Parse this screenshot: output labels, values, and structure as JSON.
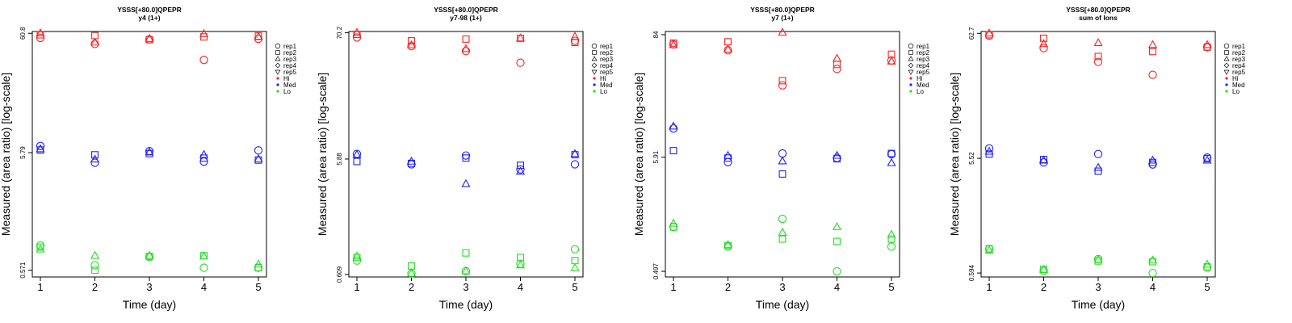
{
  "colors": {
    "Hi": "#ff2020",
    "Med": "#2020ff",
    "Lo": "#20e020",
    "axis": "#000000"
  },
  "legend": {
    "shapes": [
      {
        "label": "rep1",
        "marker": "circle"
      },
      {
        "label": "rep2",
        "marker": "square"
      },
      {
        "label": "rep3",
        "marker": "triangle-up"
      },
      {
        "label": "rep4",
        "marker": "diamond"
      },
      {
        "label": "rep5",
        "marker": "triangle-down"
      }
    ],
    "groups": [
      {
        "label": "Hi",
        "color_key": "Hi"
      },
      {
        "label": "Med",
        "color_key": "Med"
      },
      {
        "label": "Lo",
        "color_key": "Lo"
      }
    ]
  },
  "chart_data": [
    {
      "type": "scatter",
      "title": "YSSS[+80.0]QPEPR",
      "subtitle": "y4 (1+)",
      "xlabel": "Time (day)",
      "ylabel": "Measured (area ratio) [log-scale]",
      "yscale": "log",
      "x_ticks": [
        "1",
        "2",
        "3",
        "4",
        "5"
      ],
      "y_ticks": [
        {
          "value": 0.571,
          "label": "0.571"
        },
        {
          "value": 5.79,
          "label": "5.79"
        },
        {
          "value": 60.8,
          "label": "60.8"
        }
      ],
      "ylim": [
        0.5,
        63
      ],
      "legend_position": "right",
      "series": [
        {
          "group": "Hi",
          "rep": "rep1",
          "x": [
            1,
            2,
            3,
            4,
            5
          ],
          "y": [
            55.5,
            49.3,
            53.9,
            36.0,
            54.5
          ]
        },
        {
          "group": "Hi",
          "rep": "rep2",
          "x": [
            1,
            2,
            3,
            4,
            5
          ],
          "y": [
            59.0,
            58.1,
            53.6,
            56.6,
            57.6
          ]
        },
        {
          "group": "Hi",
          "rep": "rep3",
          "x": [
            1,
            2,
            3,
            4,
            5
          ],
          "y": [
            60.8,
            50.8,
            54.5,
            60.0,
            56.6
          ]
        },
        {
          "group": "Med",
          "rep": "rep1",
          "x": [
            1,
            2,
            3,
            4,
            5
          ],
          "y": [
            6.6,
            4.75,
            5.97,
            4.85,
            6.05
          ]
        },
        {
          "group": "Med",
          "rep": "rep2",
          "x": [
            1,
            2,
            3,
            4,
            5
          ],
          "y": [
            6.1,
            5.55,
            5.68,
            5.2,
            5.0
          ]
        },
        {
          "group": "Med",
          "rep": "rep3",
          "x": [
            1,
            2,
            3,
            4,
            5
          ],
          "y": [
            6.2,
            5.07,
            5.83,
            5.55,
            5.1
          ]
        },
        {
          "group": "Lo",
          "rep": "rep1",
          "x": [
            1,
            2,
            3,
            4,
            5
          ],
          "y": [
            0.93,
            0.63,
            0.74,
            0.6,
            0.6
          ]
        },
        {
          "group": "Lo",
          "rep": "rep2",
          "x": [
            1,
            2,
            3,
            4,
            5
          ],
          "y": [
            0.9,
            0.571,
            0.75,
            0.76,
            0.6
          ]
        },
        {
          "group": "Lo",
          "rep": "rep3",
          "x": [
            1,
            2,
            3,
            4,
            5
          ],
          "y": [
            0.86,
            0.76,
            0.76,
            0.75,
            0.64
          ]
        }
      ]
    },
    {
      "type": "scatter",
      "title": "YSSS[+80.0]QPEPR",
      "subtitle": "y7-98 (1+)",
      "xlabel": "Time (day)",
      "ylabel": "Measured (area ratio) [log-scale]",
      "yscale": "log",
      "x_ticks": [
        "1",
        "2",
        "3",
        "4",
        "5"
      ],
      "y_ticks": [
        {
          "value": 0.609,
          "label": "0.609"
        },
        {
          "value": 5.88,
          "label": "5.88"
        },
        {
          "value": 70.2,
          "label": "70.2"
        }
      ],
      "ylim": [
        0.58,
        72
      ],
      "legend_position": "right",
      "series": [
        {
          "group": "Hi",
          "rep": "rep1",
          "x": [
            1,
            2,
            3,
            4,
            5
          ],
          "y": [
            64.0,
            54.0,
            49.0,
            39.0,
            60.0
          ]
        },
        {
          "group": "Hi",
          "rep": "rep2",
          "x": [
            1,
            2,
            3,
            4,
            5
          ],
          "y": [
            68.0,
            60.0,
            62.0,
            63.0,
            58.0
          ]
        },
        {
          "group": "Hi",
          "rep": "rep3",
          "x": [
            1,
            2,
            3,
            4,
            5
          ],
          "y": [
            70.2,
            55.0,
            51.0,
            63.0,
            65.0
          ]
        },
        {
          "group": "Med",
          "rep": "rep1",
          "x": [
            1,
            2,
            3,
            4,
            5
          ],
          "y": [
            6.5,
            5.3,
            6.3,
            4.8,
            5.3
          ]
        },
        {
          "group": "Med",
          "rep": "rep2",
          "x": [
            1,
            2,
            3,
            4,
            5
          ],
          "y": [
            5.6,
            5.4,
            6.0,
            5.2,
            6.4
          ]
        },
        {
          "group": "Med",
          "rep": "rep3",
          "x": [
            1,
            2,
            3,
            4,
            5
          ],
          "y": [
            6.4,
            5.6,
            3.6,
            4.6,
            6.5
          ]
        },
        {
          "group": "Lo",
          "rep": "rep1",
          "x": [
            1,
            2,
            3,
            4,
            5
          ],
          "y": [
            0.8,
            0.62,
            0.65,
            0.75,
            1.0
          ]
        },
        {
          "group": "Lo",
          "rep": "rep2",
          "x": [
            1,
            2,
            3,
            4,
            5
          ],
          "y": [
            0.85,
            0.72,
            0.93,
            0.85,
            0.8
          ]
        },
        {
          "group": "Lo",
          "rep": "rep3",
          "x": [
            1,
            2,
            3,
            4,
            5
          ],
          "y": [
            0.87,
            0.62,
            0.65,
            0.73,
            0.69
          ]
        }
      ]
    },
    {
      "type": "scatter",
      "title": "YSSS[+80.0]QPEPR",
      "subtitle": "y7 (1+)",
      "xlabel": "Time (day)",
      "ylabel": "Measured (area ratio) [log-scale]",
      "yscale": "log",
      "x_ticks": [
        "1",
        "2",
        "3",
        "4",
        "5"
      ],
      "y_ticks": [
        {
          "value": 0.497,
          "label": "0.497"
        },
        {
          "value": 5.91,
          "label": "5.91"
        },
        {
          "value": 84,
          "label": "84"
        }
      ],
      "ylim": [
        0.44,
        90
      ],
      "legend_position": "right",
      "series": [
        {
          "group": "Hi",
          "rep": "rep1",
          "x": [
            1,
            2,
            3,
            4,
            5
          ],
          "y": [
            68.0,
            60.0,
            28.0,
            40.0,
            48.0
          ]
        },
        {
          "group": "Hi",
          "rep": "rep2",
          "x": [
            1,
            2,
            3,
            4,
            5
          ],
          "y": [
            70.0,
            72.0,
            31.0,
            44.0,
            55.0
          ]
        },
        {
          "group": "Hi",
          "rep": "rep3",
          "x": [
            1,
            2,
            3,
            4,
            5
          ],
          "y": [
            67.0,
            61.0,
            88.0,
            50.0,
            47.0
          ]
        },
        {
          "group": "Med",
          "rep": "rep1",
          "x": [
            1,
            2,
            3,
            4,
            5
          ],
          "y": [
            11.0,
            5.3,
            6.4,
            5.8,
            6.3
          ]
        },
        {
          "group": "Med",
          "rep": "rep2",
          "x": [
            1,
            2,
            3,
            4,
            5
          ],
          "y": [
            6.8,
            5.8,
            4.1,
            5.7,
            6.4
          ]
        },
        {
          "group": "Med",
          "rep": "rep3",
          "x": [
            1,
            2,
            3,
            4,
            5
          ],
          "y": [
            11.5,
            6.1,
            5.4,
            6.1,
            5.2
          ]
        },
        {
          "group": "Lo",
          "rep": "rep1",
          "x": [
            1,
            2,
            3,
            4,
            5
          ],
          "y": [
            1.3,
            0.85,
            1.55,
            0.497,
            0.85
          ]
        },
        {
          "group": "Lo",
          "rep": "rep2",
          "x": [
            1,
            2,
            3,
            4,
            5
          ],
          "y": [
            1.3,
            0.87,
            1.0,
            0.95,
            1.0
          ]
        },
        {
          "group": "Lo",
          "rep": "rep3",
          "x": [
            1,
            2,
            3,
            4,
            5
          ],
          "y": [
            1.4,
            0.88,
            1.15,
            1.3,
            1.1
          ]
        }
      ]
    },
    {
      "type": "scatter",
      "title": "YSSS[+80.0]QPEPR",
      "subtitle": "sum of Ions",
      "xlabel": "Time (day)",
      "ylabel": "Measured (area ratio) [log-scale]",
      "yscale": "log",
      "x_ticks": [
        "1",
        "2",
        "3",
        "4",
        "5"
      ],
      "y_ticks": [
        {
          "value": 0.594,
          "label": "0.594"
        },
        {
          "value": 5.52,
          "label": "5.52"
        },
        {
          "value": 62.7,
          "label": "62.7"
        }
      ],
      "ylim": [
        0.55,
        65
      ],
      "legend_position": "right",
      "series": [
        {
          "group": "Hi",
          "rep": "rep1",
          "x": [
            1,
            2,
            3,
            4,
            5
          ],
          "y": [
            60.0,
            47.0,
            36.0,
            28.0,
            48.0
          ]
        },
        {
          "group": "Hi",
          "rep": "rep2",
          "x": [
            1,
            2,
            3,
            4,
            5
          ],
          "y": [
            61.0,
            57.0,
            40.0,
            44.0,
            48.0
          ]
        },
        {
          "group": "Hi",
          "rep": "rep3",
          "x": [
            1,
            2,
            3,
            4,
            5
          ],
          "y": [
            62.7,
            51.0,
            52.0,
            50.0,
            50.0
          ]
        },
        {
          "group": "Med",
          "rep": "rep1",
          "x": [
            1,
            2,
            3,
            4,
            5
          ],
          "y": [
            6.7,
            5.1,
            6.0,
            4.9,
            5.6
          ]
        },
        {
          "group": "Med",
          "rep": "rep2",
          "x": [
            1,
            2,
            3,
            4,
            5
          ],
          "y": [
            6.0,
            5.4,
            4.3,
            5.1,
            5.5
          ]
        },
        {
          "group": "Med",
          "rep": "rep3",
          "x": [
            1,
            2,
            3,
            4,
            5
          ],
          "y": [
            6.3,
            5.3,
            4.6,
            5.3,
            5.3
          ]
        },
        {
          "group": "Lo",
          "rep": "rep1",
          "x": [
            1,
            2,
            3,
            4,
            5
          ],
          "y": [
            0.95,
            0.62,
            0.78,
            0.594,
            0.66
          ]
        },
        {
          "group": "Lo",
          "rep": "rep2",
          "x": [
            1,
            2,
            3,
            4,
            5
          ],
          "y": [
            0.95,
            0.64,
            0.75,
            0.74,
            0.67
          ]
        },
        {
          "group": "Lo",
          "rep": "rep3",
          "x": [
            1,
            2,
            3,
            4,
            5
          ],
          "y": [
            0.92,
            0.63,
            0.77,
            0.76,
            0.7
          ]
        }
      ]
    }
  ]
}
